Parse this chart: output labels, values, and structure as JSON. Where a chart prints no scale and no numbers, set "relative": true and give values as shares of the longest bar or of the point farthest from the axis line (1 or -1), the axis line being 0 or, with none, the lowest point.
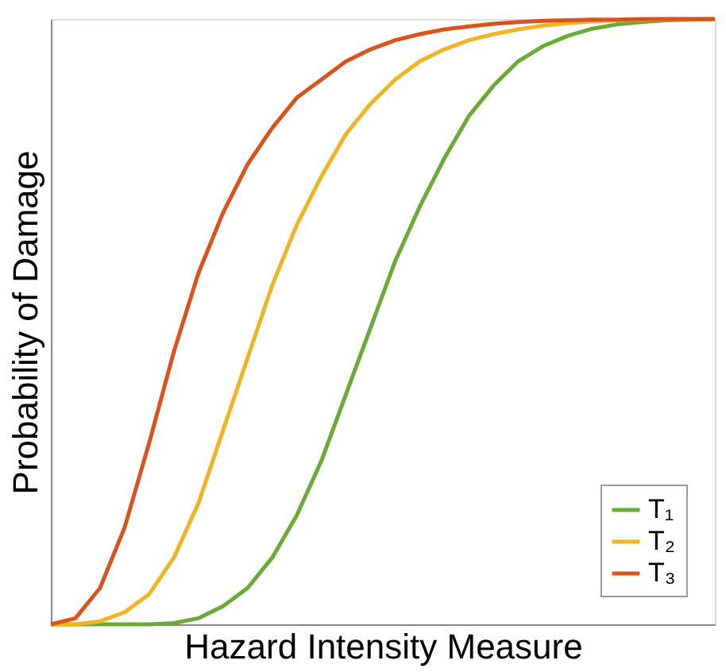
{
  "chart_data": {
    "type": "line",
    "relative": true,
    "xlabel": "Hazard Intensity Measure",
    "ylabel": "Probability of Damage",
    "tick_labels": false,
    "grid": false,
    "legend": "bottom right",
    "marker": "none",
    "line_style": "solid",
    "categories": [
      null,
      null,
      null,
      null,
      null,
      null,
      null,
      null,
      null,
      null,
      null,
      null,
      null,
      null,
      null,
      null,
      null,
      null,
      null,
      null,
      null,
      null,
      null,
      null,
      null,
      null,
      null,
      null
    ],
    "series": [
      {
        "name": "T₁",
        "color": "#6aab35",
        "values": [
          0,
          0,
          0,
          0,
          0,
          0.002,
          0.01,
          0.03,
          0.06,
          0.11,
          0.18,
          0.27,
          0.38,
          0.49,
          0.6,
          0.69,
          0.77,
          0.84,
          0.89,
          0.93,
          0.955,
          0.972,
          0.984,
          0.991,
          0.995,
          0.998,
          0.999,
          1
        ]
      },
      {
        "name": "T₂",
        "color": "#f0b323",
        "values": [
          0,
          0,
          0.005,
          0.02,
          0.05,
          0.11,
          0.2,
          0.32,
          0.44,
          0.56,
          0.66,
          0.74,
          0.81,
          0.86,
          0.9,
          0.93,
          0.95,
          0.965,
          0.975,
          0.983,
          0.989,
          0.993,
          0.996,
          0.998,
          0.999,
          1,
          1,
          1
        ]
      },
      {
        "name": "T₃",
        "color": "#d9531e",
        "values": [
          0,
          0.01,
          0.06,
          0.16,
          0.3,
          0.45,
          0.58,
          0.68,
          0.76,
          0.82,
          0.87,
          0.9,
          0.93,
          0.95,
          0.965,
          0.975,
          0.983,
          0.988,
          0.992,
          0.995,
          0.997,
          0.998,
          0.999,
          0.999,
          1,
          1,
          1,
          1
        ]
      }
    ]
  }
}
